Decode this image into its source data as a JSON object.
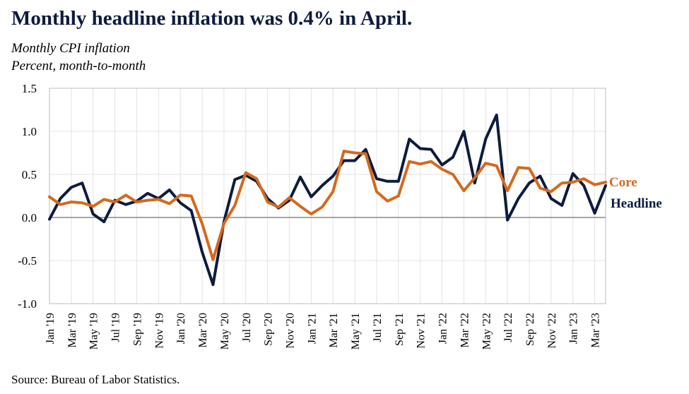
{
  "title": "Monthly headline inflation was 0.4% in April.",
  "subtitle_1": "Monthly CPI inflation",
  "subtitle_2": "Percent, month-to-month",
  "source": "Source: Bureau of Labor Statistics.",
  "colors": {
    "headline": "#0d1b3e",
    "core": "#d4691e",
    "grid": "#e3e3e3",
    "axis": "#888888"
  },
  "chart_data": {
    "type": "line",
    "ylim": [
      -1.0,
      1.5
    ],
    "y_ticks": [
      "1.5",
      "1.0",
      "0.5",
      "0.0",
      "-0.5",
      "-1.0"
    ],
    "y_tick_values": [
      1.5,
      1.0,
      0.5,
      0.0,
      -0.5,
      -1.0
    ],
    "x": [
      "Jan '19",
      "Feb '19",
      "Mar '19",
      "Apr '19",
      "May '19",
      "Jun '19",
      "Jul '19",
      "Aug '19",
      "Sep '19",
      "Oct '19",
      "Nov '19",
      "Dec '19",
      "Jan '20",
      "Feb '20",
      "Mar '20",
      "Apr '20",
      "May '20",
      "Jun '20",
      "Jul '20",
      "Aug '20",
      "Sep '20",
      "Oct '20",
      "Nov '20",
      "Dec '20",
      "Jan '21",
      "Feb '21",
      "Mar '21",
      "Apr '21",
      "May '21",
      "Jun '21",
      "Jul '21",
      "Aug '21",
      "Sep '21",
      "Oct '21",
      "Nov '21",
      "Dec '21",
      "Jan '22",
      "Feb '22",
      "Mar '22",
      "Apr '22",
      "May '22",
      "Jun '22",
      "Jul '22",
      "Aug '22",
      "Sep '22",
      "Oct '22",
      "Nov '22",
      "Dec '22",
      "Jan '23",
      "Feb '23",
      "Mar '23",
      "Apr '23"
    ],
    "x_tick_labels": [
      "Jan '19",
      "Mar '19",
      "May '19",
      "Jul '19",
      "Sep '19",
      "Nov '19",
      "Jan '20",
      "Mar '20",
      "May '20",
      "Jul '20",
      "Sep '20",
      "Nov '20",
      "Jan '21",
      "Mar '21",
      "May '21",
      "Jul '21",
      "Sep '21",
      "Nov '21",
      "Jan '22",
      "Mar '22",
      "May '22",
      "Jul '22",
      "Sep '22",
      "Nov '22",
      "Jan '23",
      "Mar '23"
    ],
    "grid": true,
    "zero_line": true,
    "series": [
      {
        "name": "Headline",
        "color_key": "headline",
        "values": [
          -0.02,
          0.22,
          0.35,
          0.4,
          0.04,
          -0.05,
          0.2,
          0.15,
          0.19,
          0.28,
          0.22,
          0.32,
          0.17,
          0.08,
          -0.4,
          -0.78,
          -0.05,
          0.44,
          0.49,
          0.42,
          0.22,
          0.11,
          0.2,
          0.47,
          0.24,
          0.37,
          0.48,
          0.66,
          0.66,
          0.79,
          0.45,
          0.42,
          0.42,
          0.91,
          0.8,
          0.79,
          0.61,
          0.7,
          1.0,
          0.4,
          0.91,
          1.19,
          -0.03,
          0.22,
          0.4,
          0.48,
          0.22,
          0.14,
          0.51,
          0.37,
          0.05,
          0.37
        ]
      },
      {
        "name": "Core",
        "color_key": "core",
        "values": [
          0.24,
          0.15,
          0.18,
          0.17,
          0.13,
          0.21,
          0.18,
          0.26,
          0.18,
          0.2,
          0.21,
          0.16,
          0.26,
          0.25,
          -0.07,
          -0.49,
          -0.07,
          0.14,
          0.52,
          0.45,
          0.18,
          0.12,
          0.23,
          0.13,
          0.04,
          0.12,
          0.3,
          0.77,
          0.75,
          0.74,
          0.3,
          0.19,
          0.25,
          0.65,
          0.62,
          0.65,
          0.56,
          0.5,
          0.31,
          0.46,
          0.63,
          0.6,
          0.31,
          0.58,
          0.57,
          0.34,
          0.3,
          0.4,
          0.41,
          0.45,
          0.38,
          0.41
        ]
      }
    ]
  }
}
